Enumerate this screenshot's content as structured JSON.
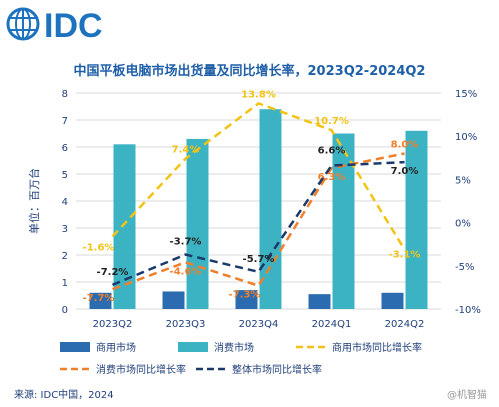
{
  "header": {
    "logo_text": "IDC",
    "title": "中国平板电脑市场出货量及同比增长率，2023Q2-2024Q2"
  },
  "footer": {
    "source": "来源: IDC中国，2024",
    "watermark": "@机智猫"
  },
  "colors": {
    "commercial": "#2b6cb0",
    "consumer": "#3bb3c3",
    "commercial_growth": "#f2c314",
    "consumer_growth": "#f07f2a",
    "total_growth": "#1a3a6b",
    "logo": "#1e73be"
  },
  "chart_data": {
    "type": "bar",
    "categories": [
      "2023Q2",
      "2023Q3",
      "2023Q4",
      "2024Q1",
      "2024Q2"
    ],
    "ylabel": "单位：百万台",
    "ylim": [
      0,
      8
    ],
    "yticks": [
      "0",
      "1",
      "2",
      "3",
      "4",
      "5",
      "6",
      "7",
      "8"
    ],
    "y2lim": [
      -10,
      15
    ],
    "y2ticks": [
      "-10%",
      "-5%",
      "0%",
      "5%",
      "10%",
      "15%"
    ],
    "grid": true,
    "legend_position": "bottom",
    "bar_series": [
      {
        "name": "商用市场",
        "values": [
          0.6,
          0.65,
          0.7,
          0.55,
          0.6
        ]
      },
      {
        "name": "消费市场",
        "values": [
          6.1,
          6.3,
          7.4,
          6.5,
          6.6
        ]
      }
    ],
    "line_series": [
      {
        "name": "商用市场同比增长率",
        "style": "dashed",
        "values": [
          -1.6,
          7.4,
          13.8,
          10.7,
          -3.1
        ],
        "labels": [
          "-1.6%",
          "7.4%",
          "13.8%",
          "10.7%",
          "-3.1%"
        ]
      },
      {
        "name": "消费市场同比增长率",
        "style": "dashed",
        "values": [
          -7.7,
          -4.6,
          -7.3,
          6.3,
          8.0
        ],
        "labels": [
          "-7.7%",
          "-4.6%",
          "-7.3%",
          "6.3%",
          "8.0%"
        ]
      },
      {
        "name": "整体市场同比增长率",
        "style": "dashed",
        "values": [
          -7.2,
          -3.7,
          -5.7,
          6.6,
          7.0
        ],
        "labels": [
          "-7.2%",
          "-3.7%",
          "-5.7%",
          "6.6%",
          "7.0%"
        ]
      }
    ]
  }
}
